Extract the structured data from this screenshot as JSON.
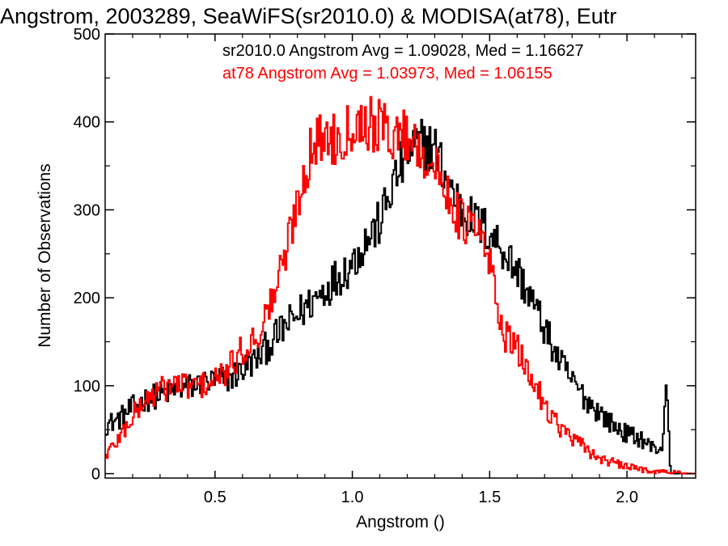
{
  "chart_data": {
    "type": "line",
    "title": "Angstrom, 2003289, SeaWiFS(sr2010.0) & MODISA(at78), Eutr",
    "xlabel": "Angstrom ()",
    "ylabel": "Number of Observations",
    "xlim": [
      0.1,
      2.25
    ],
    "ylim": [
      -5,
      500
    ],
    "x_ticks": [
      0.5,
      1.0,
      1.5,
      2.0
    ],
    "x_tick_labels": [
      "0.5",
      "1.0",
      "1.5",
      "2.0"
    ],
    "y_ticks": [
      0,
      100,
      200,
      300,
      400,
      500
    ],
    "y_tick_labels": [
      "0",
      "100",
      "200",
      "300",
      "400",
      "500"
    ],
    "grid": false,
    "legend_position": "top-right",
    "series": [
      {
        "name": "sr2010.0",
        "legend_text": "sr2010.0 Angstrom Avg = 1.09028, Med = 1.16627",
        "color": "#000000",
        "style": "histogram-step",
        "anchors": [
          [
            0.1,
            55
          ],
          [
            0.15,
            62
          ],
          [
            0.2,
            75
          ],
          [
            0.25,
            85
          ],
          [
            0.3,
            90
          ],
          [
            0.35,
            95
          ],
          [
            0.4,
            98
          ],
          [
            0.45,
            102
          ],
          [
            0.5,
            105
          ],
          [
            0.55,
            108
          ],
          [
            0.6,
            118
          ],
          [
            0.65,
            130
          ],
          [
            0.7,
            148
          ],
          [
            0.75,
            165
          ],
          [
            0.8,
            180
          ],
          [
            0.85,
            195
          ],
          [
            0.9,
            210
          ],
          [
            0.95,
            225
          ],
          [
            1.0,
            240
          ],
          [
            1.05,
            265
          ],
          [
            1.1,
            285
          ],
          [
            1.15,
            330
          ],
          [
            1.2,
            365
          ],
          [
            1.25,
            375
          ],
          [
            1.3,
            370
          ],
          [
            1.35,
            330
          ],
          [
            1.4,
            300
          ],
          [
            1.45,
            285
          ],
          [
            1.5,
            275
          ],
          [
            1.55,
            255
          ],
          [
            1.6,
            230
          ],
          [
            1.65,
            200
          ],
          [
            1.7,
            165
          ],
          [
            1.75,
            130
          ],
          [
            1.8,
            105
          ],
          [
            1.85,
            85
          ],
          [
            1.9,
            70
          ],
          [
            1.95,
            55
          ],
          [
            2.0,
            45
          ],
          [
            2.05,
            40
          ],
          [
            2.1,
            28
          ],
          [
            2.13,
            30
          ],
          [
            2.14,
            105
          ],
          [
            2.15,
            60
          ],
          [
            2.16,
            0
          ],
          [
            2.25,
            0
          ]
        ]
      },
      {
        "name": "at78",
        "legend_text": "at78 Angstrom Avg = 1.03973, Med = 1.06155",
        "color": "#ff0000",
        "style": "histogram-step",
        "anchors": [
          [
            0.1,
            20
          ],
          [
            0.15,
            40
          ],
          [
            0.2,
            65
          ],
          [
            0.25,
            85
          ],
          [
            0.3,
            95
          ],
          [
            0.35,
            102
          ],
          [
            0.4,
            100
          ],
          [
            0.45,
            100
          ],
          [
            0.5,
            105
          ],
          [
            0.55,
            118
          ],
          [
            0.6,
            140
          ],
          [
            0.65,
            155
          ],
          [
            0.7,
            190
          ],
          [
            0.75,
            240
          ],
          [
            0.8,
            310
          ],
          [
            0.85,
            370
          ],
          [
            0.9,
            385
          ],
          [
            0.95,
            380
          ],
          [
            1.0,
            400
          ],
          [
            1.05,
            400
          ],
          [
            1.1,
            395
          ],
          [
            1.15,
            385
          ],
          [
            1.2,
            385
          ],
          [
            1.25,
            370
          ],
          [
            1.3,
            345
          ],
          [
            1.35,
            320
          ],
          [
            1.4,
            285
          ],
          [
            1.45,
            280
          ],
          [
            1.5,
            240
          ],
          [
            1.55,
            160
          ],
          [
            1.6,
            140
          ],
          [
            1.65,
            110
          ],
          [
            1.7,
            80
          ],
          [
            1.75,
            55
          ],
          [
            1.8,
            40
          ],
          [
            1.85,
            28
          ],
          [
            1.9,
            18
          ],
          [
            1.95,
            12
          ],
          [
            2.0,
            8
          ],
          [
            2.05,
            5
          ],
          [
            2.1,
            3
          ],
          [
            2.16,
            1
          ],
          [
            2.25,
            0
          ]
        ]
      }
    ]
  }
}
